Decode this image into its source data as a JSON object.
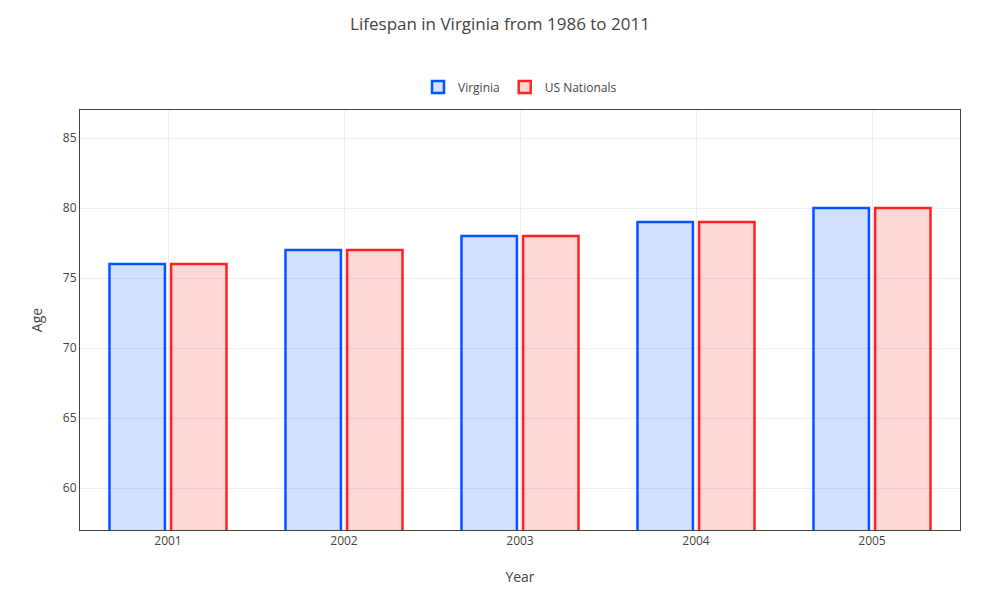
{
  "chart_data": {
    "type": "bar",
    "title": "Lifespan in Virginia from 1986 to 2011",
    "x_label": "Year",
    "y_label": "Age",
    "categories": [
      "2001",
      "2002",
      "2003",
      "2004",
      "2005"
    ],
    "series": [
      {
        "name": "Virginia",
        "color": "#0055ff",
        "values": [
          76,
          77,
          78,
          79,
          80
        ]
      },
      {
        "name": "US Nationals",
        "color": "#ff2222",
        "values": [
          76,
          77,
          78,
          79,
          80
        ]
      }
    ],
    "ylim": [
      57,
      87
    ],
    "yticks": [
      60,
      65,
      70,
      75,
      80,
      85
    ],
    "grid": true,
    "legend": "top"
  }
}
